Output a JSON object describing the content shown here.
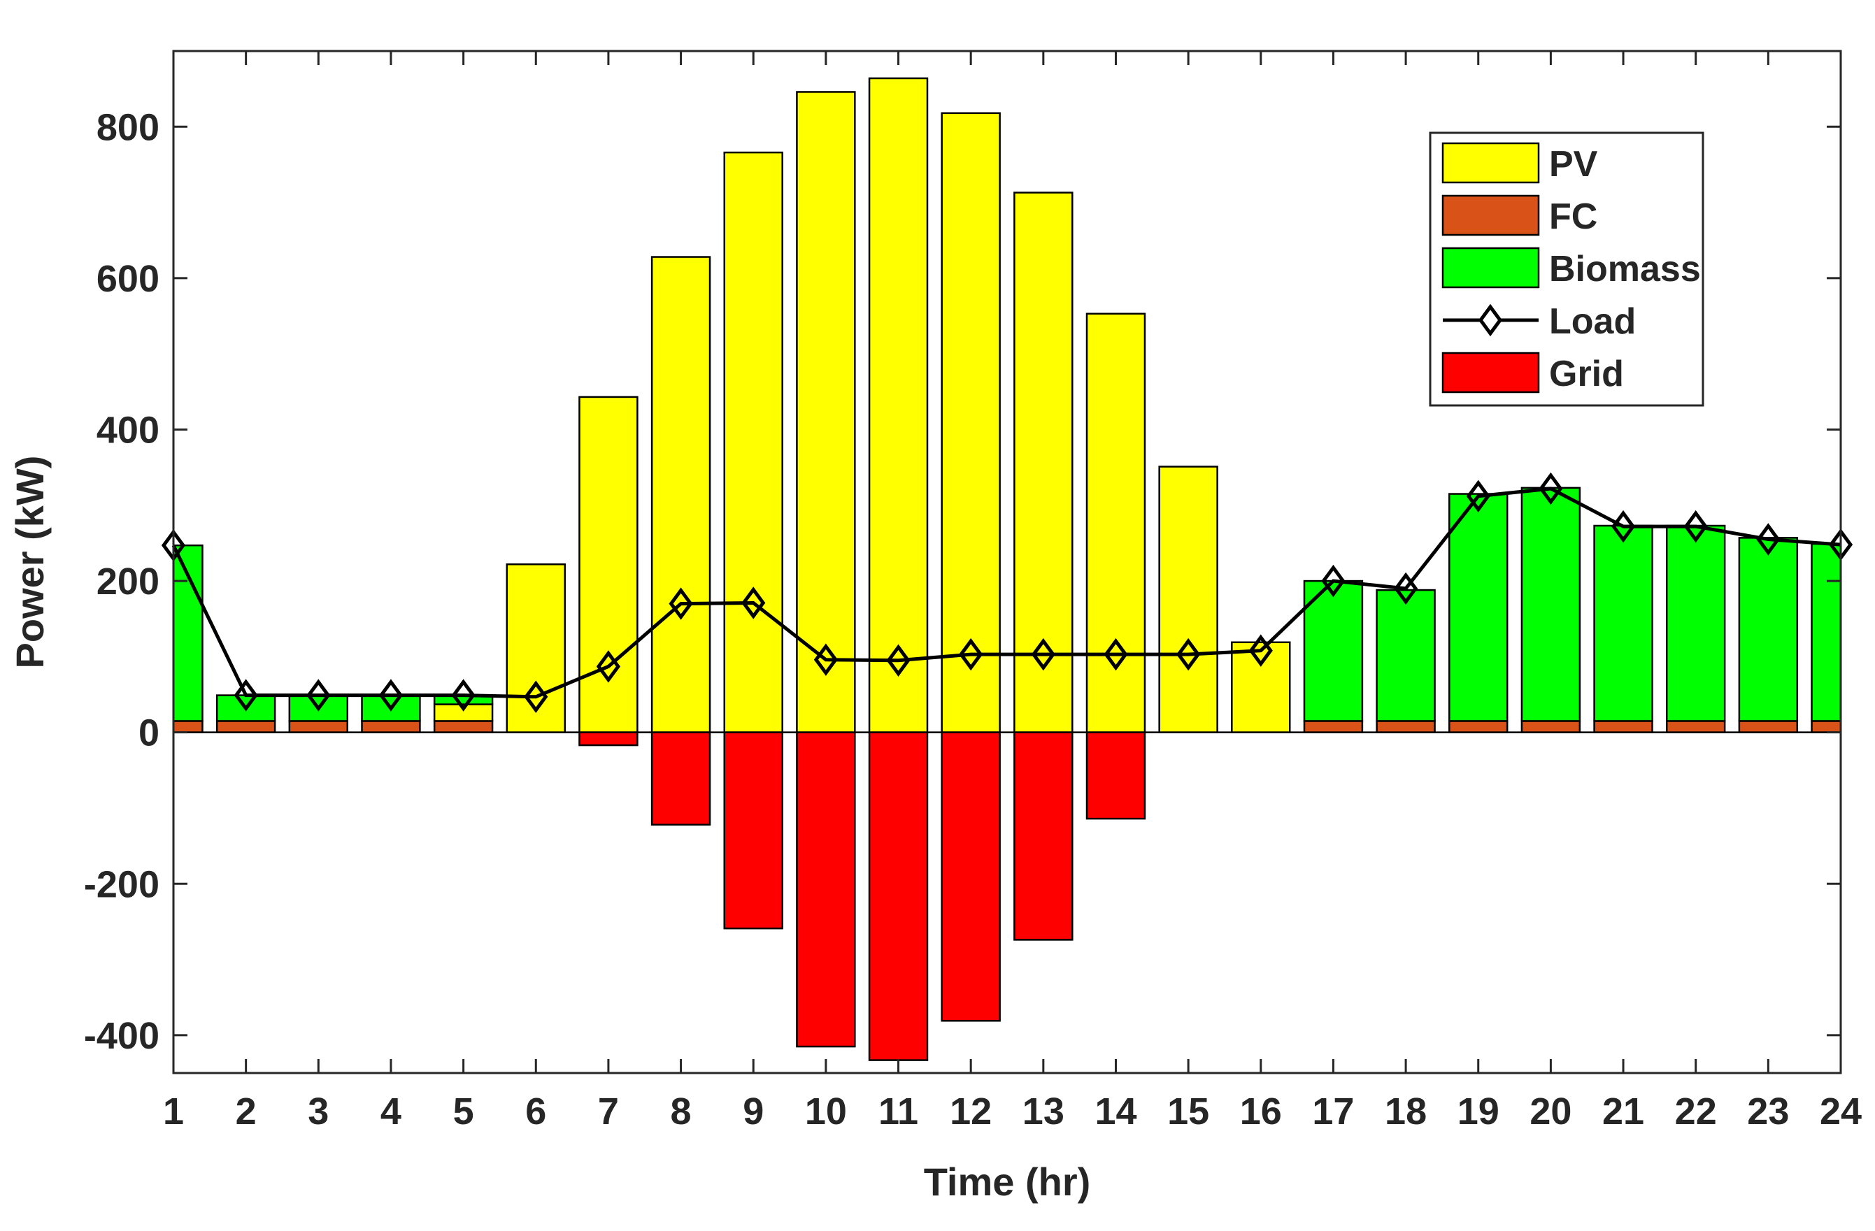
{
  "chart_data": {
    "type": "bar",
    "xlabel": "Time (hr)",
    "ylabel": "Power (kW)",
    "xlim": [
      1,
      24
    ],
    "ylim": [
      -450,
      900
    ],
    "yticks": [
      -400,
      -200,
      0,
      200,
      400,
      600,
      800
    ],
    "categories": [
      "1",
      "2",
      "3",
      "4",
      "5",
      "6",
      "7",
      "8",
      "9",
      "10",
      "11",
      "12",
      "13",
      "14",
      "15",
      "16",
      "17",
      "18",
      "19",
      "20",
      "21",
      "22",
      "23",
      "24"
    ],
    "legend_position": "top-right",
    "series": [
      {
        "name": "PV",
        "kind": "bar",
        "color": "#FFFF00",
        "values": [
          0,
          0,
          0,
          0,
          22,
          222,
          443,
          628,
          766,
          846,
          864,
          818,
          713,
          553,
          351,
          119,
          0,
          0,
          0,
          0,
          0,
          0,
          0,
          0
        ]
      },
      {
        "name": "FC",
        "kind": "bar",
        "color": "#D95319",
        "values": [
          15,
          15,
          15,
          15,
          15,
          0,
          0,
          0,
          0,
          0,
          0,
          0,
          0,
          0,
          0,
          0,
          15,
          15,
          15,
          15,
          15,
          15,
          15,
          15
        ]
      },
      {
        "name": "Biomass",
        "kind": "bar",
        "color": "#00FF00",
        "values": [
          232,
          34,
          34,
          34,
          11,
          0,
          0,
          0,
          0,
          0,
          0,
          0,
          0,
          0,
          0,
          0,
          185,
          173,
          300,
          308,
          258,
          258,
          242,
          234
        ]
      },
      {
        "name": "Load",
        "kind": "line",
        "color": "#000000",
        "values": [
          247,
          49,
          49,
          49,
          49,
          47,
          87,
          170,
          171,
          96,
          95,
          103,
          103,
          103,
          103,
          108,
          200,
          190,
          312,
          322,
          272,
          272,
          255,
          248
        ]
      },
      {
        "name": "Grid",
        "kind": "bar",
        "color": "#FF0000",
        "values": [
          0,
          0,
          0,
          0,
          0,
          0,
          -17,
          -122,
          -259,
          -415,
          -433,
          -381,
          -274,
          -114,
          0,
          0,
          0,
          0,
          0,
          0,
          0,
          0,
          0,
          0
        ]
      }
    ]
  }
}
